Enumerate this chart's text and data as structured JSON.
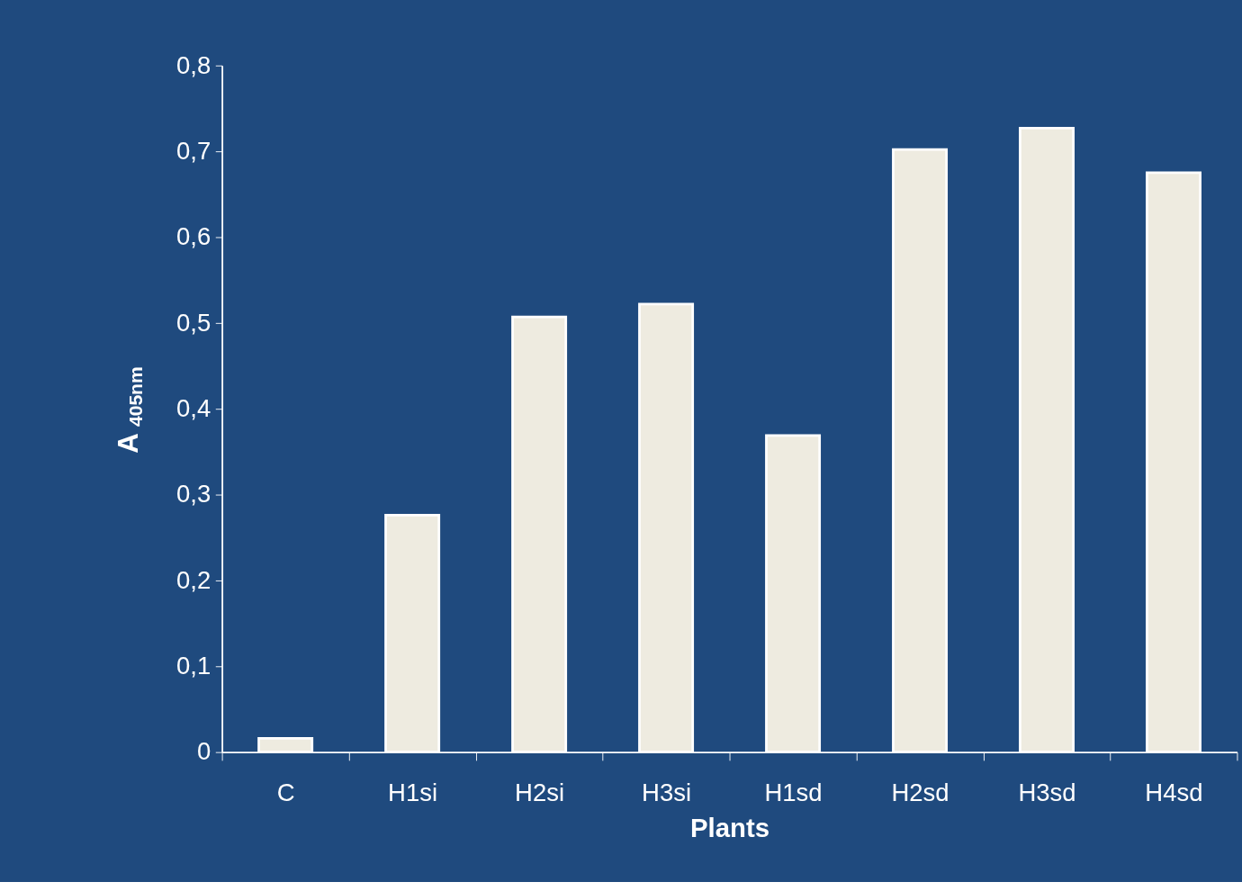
{
  "chart_data": {
    "type": "bar",
    "xlabel": "Plants",
    "ylabel": "A$_{405nm}$",
    "categories": [
      "C",
      "H1si",
      "H2si",
      "H3si",
      "H1sd",
      "H2sd",
      "H3sd",
      "H4sd"
    ],
    "values": [
      0.016,
      0.276,
      0.507,
      0.522,
      0.369,
      0.702,
      0.727,
      0.675
    ],
    "color": "#eeebe0",
    "ylim": [
      0,
      0.8
    ],
    "yticks": [
      0,
      {
        "value": 0.1,
        "label": "0,1"
      },
      {
        "value": 0.2,
        "label": "0,2"
      },
      {
        "value": 0.3,
        "label": "0,3"
      },
      {
        "value": 0.4,
        "label": "0,4"
      },
      {
        "value": 0.5,
        "label": "0,5"
      },
      {
        "value": 0.6,
        "label": "0,6"
      },
      {
        "value": 0.7,
        "label": "0,7"
      },
      {
        "value": 0.8,
        "label": "0,8"
      }
    ],
    "grid": false
  }
}
